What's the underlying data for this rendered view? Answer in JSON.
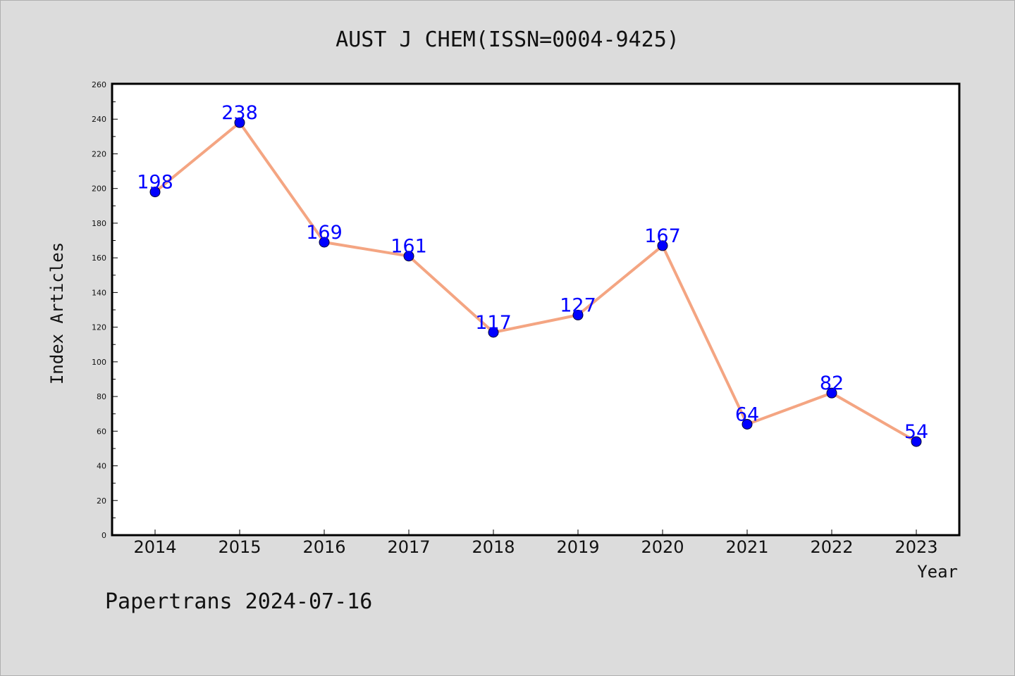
{
  "chart_data": {
    "type": "line",
    "title": "AUST J CHEM(ISSN=0004-9425)",
    "xlabel": "Year",
    "ylabel": "Index Articles",
    "categories": [
      "2014",
      "2015",
      "2016",
      "2017",
      "2018",
      "2019",
      "2020",
      "2021",
      "2022",
      "2023"
    ],
    "series": [
      {
        "values": [
          198,
          238,
          169,
          161,
          117,
          127,
          167,
          64,
          82,
          54
        ]
      }
    ],
    "ylim": [
      0,
      260
    ],
    "yticks": [
      0,
      20,
      40,
      60,
      80,
      100,
      120,
      140,
      160,
      180,
      200,
      220,
      240,
      260
    ],
    "grid": false,
    "legend": "none",
    "colors": {
      "line": "#f4a582",
      "marker": "#0000ff",
      "data_label": "#0000ff",
      "background": "#dcdcdc",
      "plot_background": "#ffffff"
    }
  },
  "footer": {
    "credit": "Papertrans 2024-07-16"
  }
}
